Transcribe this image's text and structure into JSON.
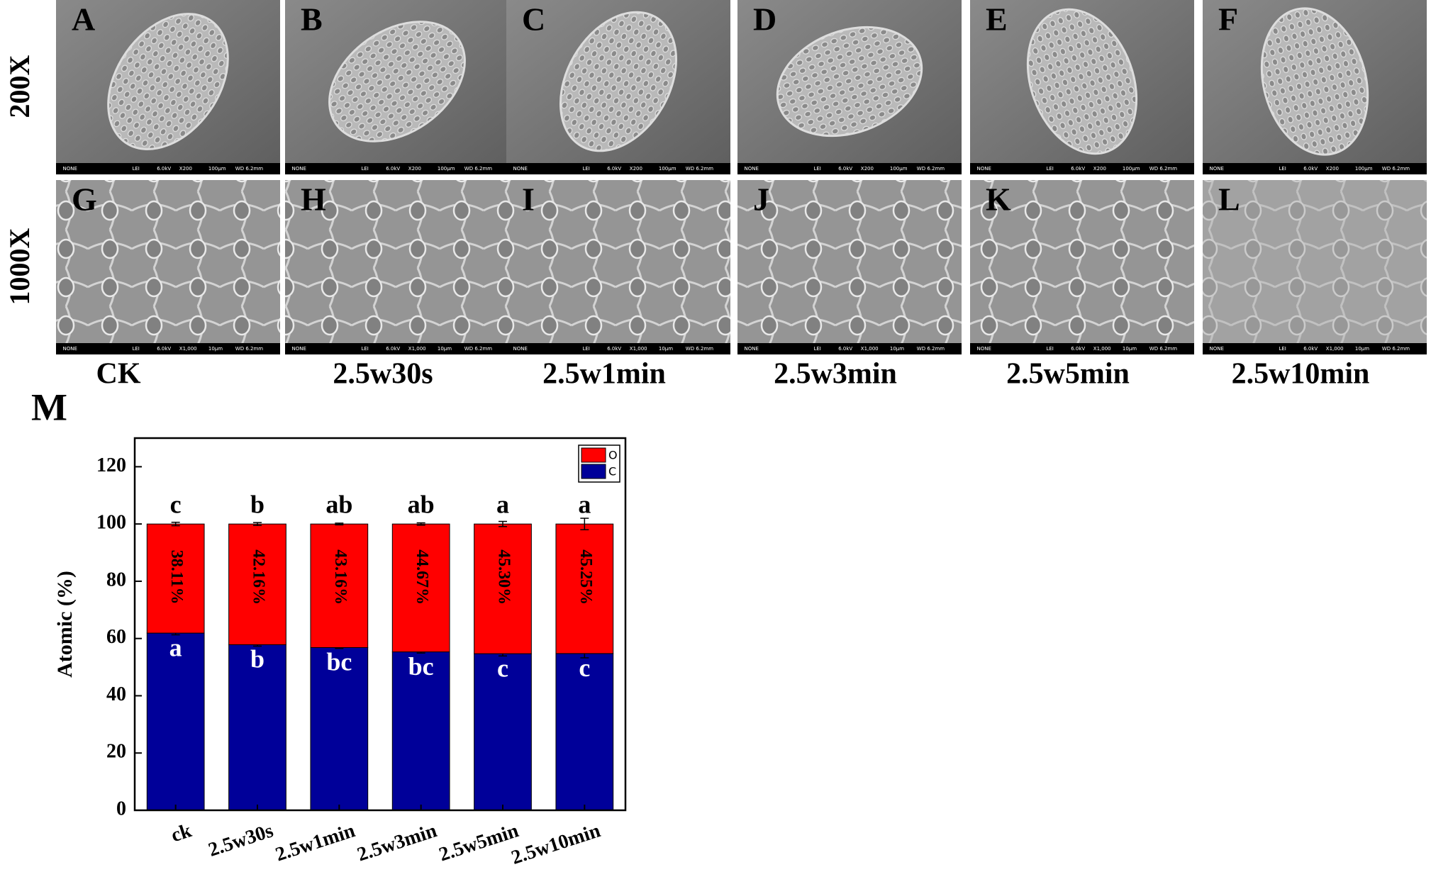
{
  "panels": {
    "row_labels": [
      "200X",
      "1000X"
    ],
    "column_labels": [
      "CK",
      "2.5w30s",
      "2.5w1min",
      "2.5w3min",
      "2.5w5min",
      "2.5w10min"
    ],
    "letters": [
      [
        "A",
        "B",
        "C",
        "D",
        "E",
        "F"
      ],
      [
        "G",
        "H",
        "I",
        "J",
        "K",
        "L"
      ]
    ],
    "info_bar": [
      [
        "NONE",
        "LEI",
        "6.0kV",
        "X200",
        "100μm",
        "WD 6.2mm"
      ],
      [
        "NONE",
        "LEI",
        "6.0kV",
        "X1,000",
        "10μm",
        "WD 6.2mm"
      ]
    ],
    "chart_label": "M"
  },
  "chart_data": {
    "type": "bar",
    "stacked": true,
    "ylabel": "Atomic (%)",
    "categories": [
      "ck",
      "2.5w30s",
      "2.5w1min",
      "2.5w3min",
      "2.5w5min",
      "2.5w10min"
    ],
    "series": [
      {
        "name": "C",
        "color": "#000099",
        "values": [
          61.89,
          57.84,
          56.84,
          55.33,
          54.7,
          54.75
        ],
        "errors": [
          0.6,
          0.5,
          0.3,
          0.4,
          0.8,
          1.5
        ],
        "letters": [
          "a",
          "b",
          "bc",
          "bc",
          "c",
          "c"
        ]
      },
      {
        "name": "O",
        "color": "#ff0000",
        "values": [
          38.11,
          42.16,
          43.16,
          44.67,
          45.3,
          45.25
        ],
        "value_labels": [
          "38.11%",
          "42.16%",
          "43.16%",
          "44.67%",
          "45.30%",
          "45.25%"
        ],
        "errors": [
          0.6,
          0.5,
          0.3,
          0.4,
          0.9,
          2.0
        ],
        "letters": [
          "c",
          "b",
          "ab",
          "ab",
          "a",
          "a"
        ]
      }
    ],
    "ylim": [
      0,
      130
    ],
    "yticks": [
      0,
      20,
      40,
      60,
      80,
      100,
      120
    ],
    "legend": "upper right"
  }
}
